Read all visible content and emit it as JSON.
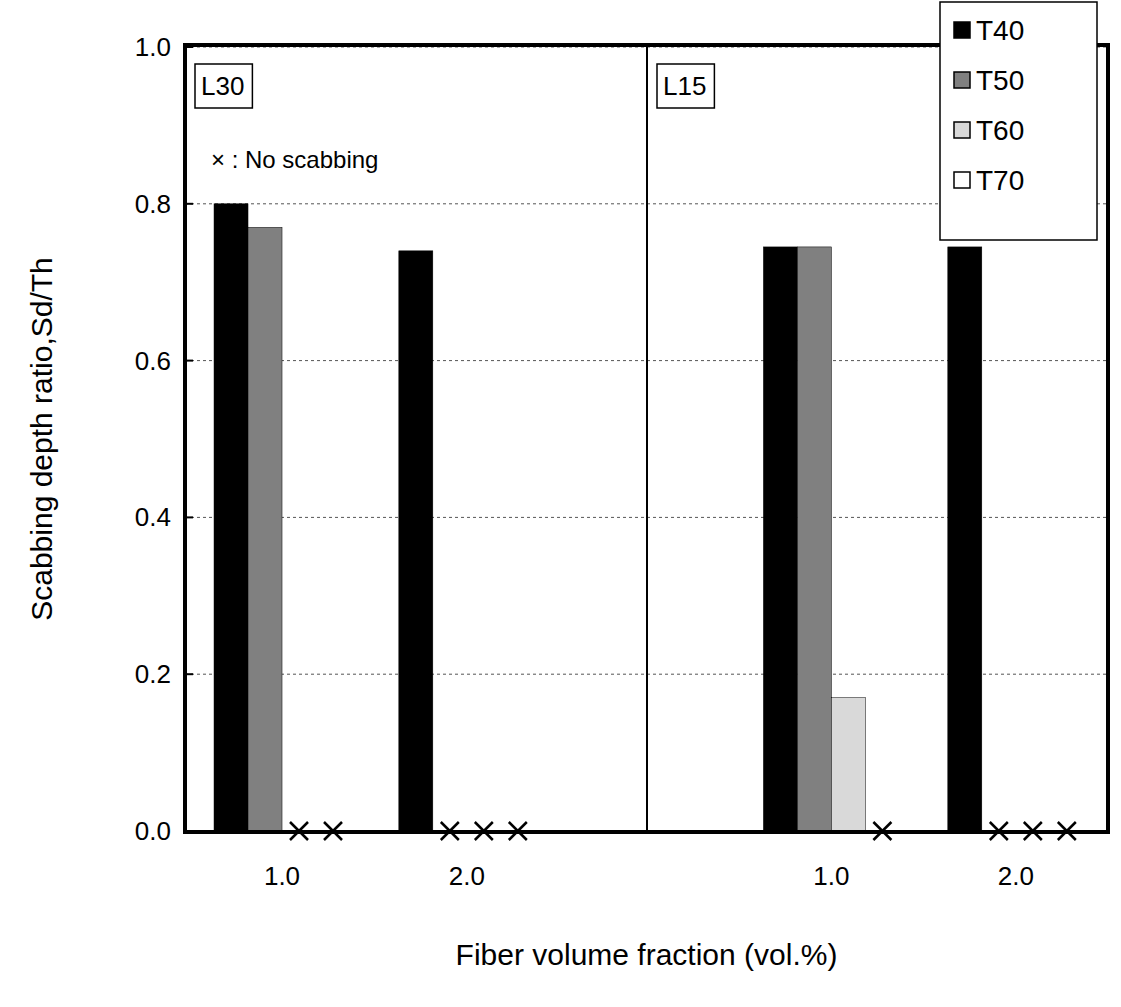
{
  "chart_data": [
    {
      "type": "bar",
      "title": "L30",
      "categories": [
        "1.0",
        "2.0"
      ],
      "series": [
        {
          "name": "T40",
          "color": "#000000",
          "values": [
            0.8,
            0.74
          ]
        },
        {
          "name": "T50",
          "color": "#808080",
          "values": [
            0.77,
            0
          ]
        },
        {
          "name": "T60",
          "color": "#d9d9d9",
          "values": [
            0,
            0
          ]
        },
        {
          "name": "T70",
          "color": "#ffffff",
          "values": [
            0,
            0
          ]
        }
      ],
      "ylim": [
        0,
        1
      ],
      "yticks": [
        {
          "value": 0,
          "label": "0.0"
        },
        {
          "value": 0.2,
          "label": "0.2"
        },
        {
          "value": 0.4,
          "label": "0.4"
        },
        {
          "value": 0.6,
          "label": "0.6"
        },
        {
          "value": 0.8,
          "label": "0.8"
        },
        {
          "value": 1,
          "label": "1.0"
        }
      ],
      "grid": true,
      "y_label": "Scabbing depth ratio,Sd/Th",
      "x_label": "Fiber volume fraction (vol.%)",
      "annotation": "× : No scabbing"
    },
    {
      "type": "bar",
      "title": "L15",
      "categories": [
        "1.0",
        "2.0"
      ],
      "series": [
        {
          "name": "T40",
          "color": "#000000",
          "values": [
            0.745,
            0.745
          ]
        },
        {
          "name": "T50",
          "color": "#808080",
          "values": [
            0.745,
            0
          ]
        },
        {
          "name": "T60",
          "color": "#d9d9d9",
          "values": [
            0.17,
            0
          ]
        },
        {
          "name": "T70",
          "color": "#ffffff",
          "values": [
            0,
            0
          ]
        }
      ],
      "ylim": [
        0,
        1
      ],
      "yticks": [
        {
          "value": 0,
          "label": "0.0"
        },
        {
          "value": 0.2,
          "label": "0.2"
        },
        {
          "value": 0.4,
          "label": "0.4"
        },
        {
          "value": 0.6,
          "label": "0.6"
        },
        {
          "value": 0.8,
          "label": "0.8"
        },
        {
          "value": 1,
          "label": "1.0"
        }
      ],
      "grid": true,
      "tick_labels": "x",
      "legend": "top-right"
    }
  ]
}
